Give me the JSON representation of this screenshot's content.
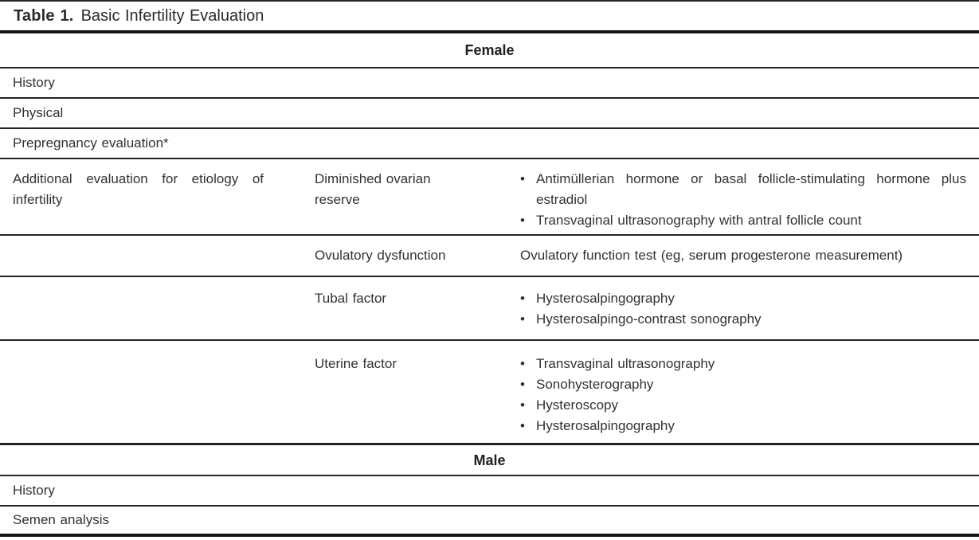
{
  "title": {
    "label": "Table 1.",
    "text": "Basic Infertility Evaluation"
  },
  "glyphs": {
    "bullet": "•"
  },
  "colors": {
    "background": "#ffffff",
    "text": "#323232",
    "rule": "#242424",
    "heavy_rule": "#151515"
  },
  "table": {
    "sections": [
      {
        "header": "Female",
        "rows": [
          {
            "col1": "History"
          },
          {
            "col1": "Physical"
          },
          {
            "col1": "Prepregnancy evaluation*"
          },
          {
            "col1": "Additional evaluation for etiology of infertility",
            "col2": "Diminished ovarian reserve",
            "bullets": [
              "Antimüllerian hormone or basal follicle-stimulating hormone plus estradiol",
              "Transvaginal ultrasonography with antral follicle count"
            ]
          },
          {
            "col1": "",
            "col2": "Ovulatory dysfunction",
            "col3_text": "Ovulatory function test (eg, serum progesterone measurement)"
          },
          {
            "col1": "",
            "col2": "Tubal factor",
            "bullets": [
              "Hysterosalpingography",
              "Hysterosalpingo-contrast sonography"
            ]
          },
          {
            "col1": "",
            "col2": "Uterine factor",
            "bullets": [
              "Transvaginal ultrasonography",
              "Sonohysterography",
              "Hysteroscopy",
              "Hysterosalpingography"
            ]
          }
        ]
      },
      {
        "header": "Male",
        "rows": [
          {
            "col1": "History"
          },
          {
            "col1": "Semen analysis"
          }
        ]
      }
    ]
  }
}
